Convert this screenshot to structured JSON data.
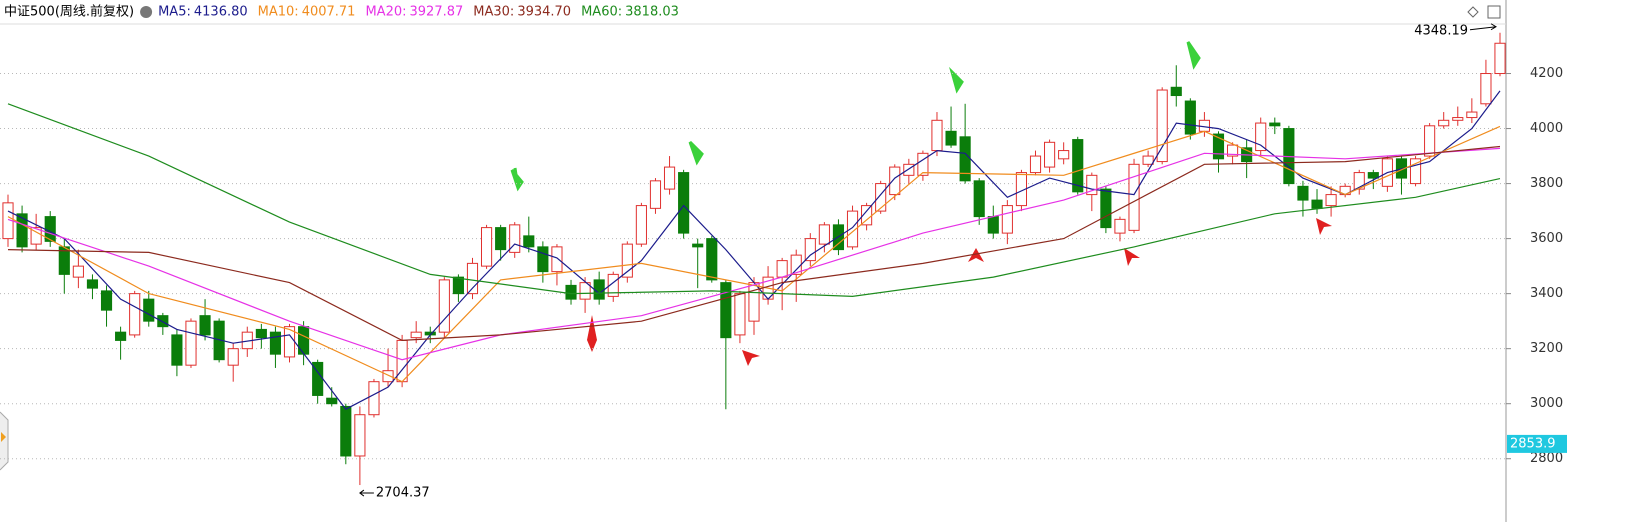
{
  "chart_data": {
    "type": "candlestick",
    "title": "中证500(周线.前复权)",
    "up_color": "#e0302e",
    "down_color": "#0b7d0b",
    "open": [
      3600,
      3690,
      3580,
      3680,
      3570,
      3460,
      3450,
      3410,
      3260,
      3250,
      3380,
      3320,
      3250,
      3140,
      3320,
      3300,
      3140,
      3200,
      3270,
      3260,
      3170,
      3280,
      3150,
      3020,
      2990,
      2810,
      2960,
      3080,
      3080,
      3240,
      3260,
      3260,
      3460,
      3400,
      3500,
      3640,
      3550,
      3610,
      3570,
      3480,
      3430,
      3380,
      3450,
      3390,
      3460,
      3580,
      3710,
      3780,
      3840,
      3580,
      3600,
      3440,
      3250,
      3300,
      3380,
      3460,
      3470,
      3520,
      3580,
      3650,
      3570,
      3650,
      3700,
      3760,
      3830,
      3830,
      3920,
      3990,
      3970,
      3810,
      3680,
      3620,
      3720,
      3840,
      3860,
      3890,
      3960,
      3760,
      3780,
      3620,
      3630,
      3870,
      3880,
      4150,
      4100,
      3990,
      3980,
      3900,
      3930,
      3920,
      4020,
      4000,
      3790,
      3740,
      3720,
      3760,
      3780,
      3840,
      3790,
      3890,
      3800,
      3900,
      4010,
      4030,
      4040,
      4090,
      4200
    ],
    "close": [
      3730,
      3570,
      3640,
      3590,
      3470,
      3500,
      3420,
      3340,
      3230,
      3400,
      3300,
      3280,
      3140,
      3300,
      3250,
      3160,
      3200,
      3260,
      3240,
      3180,
      3280,
      3180,
      3030,
      3000,
      2810,
      2960,
      3080,
      3120,
      3230,
      3260,
      3250,
      3450,
      3400,
      3510,
      3640,
      3560,
      3650,
      3570,
      3480,
      3570,
      3380,
      3440,
      3380,
      3470,
      3580,
      3720,
      3810,
      3860,
      3620,
      3570,
      3450,
      3240,
      3400,
      3440,
      3460,
      3520,
      3540,
      3600,
      3650,
      3560,
      3700,
      3720,
      3800,
      3860,
      3870,
      3910,
      4030,
      3940,
      3810,
      3680,
      3620,
      3720,
      3840,
      3900,
      3950,
      3920,
      3770,
      3830,
      3640,
      3670,
      3870,
      3900,
      4140,
      4120,
      3980,
      4030,
      3890,
      3940,
      3880,
      4020,
      4010,
      3800,
      3740,
      3710,
      3760,
      3790,
      3840,
      3820,
      3890,
      3820,
      3890,
      4010,
      4030,
      4040,
      4060,
      4200,
      4310
    ],
    "high": [
      3760,
      3720,
      3690,
      3700,
      3600,
      3560,
      3470,
      3430,
      3280,
      3410,
      3410,
      3330,
      3270,
      3310,
      3380,
      3310,
      3220,
      3280,
      3290,
      3280,
      3290,
      3300,
      3160,
      3060,
      3000,
      2990,
      3090,
      3200,
      3250,
      3300,
      3280,
      3460,
      3470,
      3530,
      3650,
      3650,
      3660,
      3680,
      3590,
      3580,
      3450,
      3460,
      3480,
      3480,
      3590,
      3730,
      3820,
      3900,
      3850,
      3600,
      3610,
      3450,
      3410,
      3460,
      3500,
      3530,
      3560,
      3620,
      3660,
      3670,
      3720,
      3730,
      3810,
      3870,
      3890,
      3920,
      4060,
      4080,
      4090,
      3820,
      3720,
      3740,
      3850,
      3920,
      3960,
      3950,
      3970,
      3840,
      3790,
      3680,
      3890,
      3920,
      4150,
      4230,
      4110,
      4060,
      3990,
      3950,
      3960,
      4040,
      4040,
      4010,
      3810,
      3780,
      3790,
      3800,
      3850,
      3850,
      3900,
      3900,
      3900,
      4020,
      4060,
      4080,
      4110,
      4250,
      4348.19
    ],
    "low": [
      3570,
      3550,
      3560,
      3570,
      3400,
      3420,
      3380,
      3280,
      3160,
      3240,
      3280,
      3250,
      3100,
      3130,
      3230,
      3150,
      3080,
      3170,
      3200,
      3130,
      3150,
      3140,
      3000,
      2990,
      2780,
      2704.37,
      2950,
      3060,
      3060,
      3220,
      3220,
      3240,
      3370,
      3380,
      3490,
      3520,
      3530,
      3550,
      3440,
      3430,
      3360,
      3330,
      3360,
      3370,
      3440,
      3570,
      3690,
      3760,
      3600,
      3420,
      3440,
      2980,
      3220,
      3250,
      3360,
      3340,
      3370,
      3500,
      3550,
      3540,
      3560,
      3630,
      3690,
      3740,
      3800,
      3810,
      3900,
      3930,
      3800,
      3650,
      3600,
      3580,
      3700,
      3830,
      3840,
      3870,
      3760,
      3700,
      3620,
      3590,
      3620,
      3860,
      3870,
      4080,
      3960,
      3970,
      3840,
      3870,
      3820,
      3900,
      3980,
      3790,
      3680,
      3690,
      3680,
      3750,
      3760,
      3780,
      3770,
      3760,
      3790,
      3890,
      4000,
      4010,
      4020,
      4080,
      4190
    ],
    "series": [
      {
        "name": "MA5",
        "color": "#1c1c8c",
        "value_label": "4136.80",
        "x": [
          0,
          4,
          8,
          12,
          16,
          20,
          24,
          27,
          30,
          33,
          36,
          39,
          42,
          45,
          48,
          51,
          54,
          57,
          60,
          63,
          66,
          68,
          71,
          74,
          77,
          80,
          83,
          86,
          89,
          92,
          95,
          98,
          101,
          104,
          106
        ],
        "values": [
          3700,
          3600,
          3380,
          3270,
          3220,
          3250,
          2980,
          3060,
          3250,
          3420,
          3580,
          3530,
          3400,
          3520,
          3720,
          3560,
          3380,
          3540,
          3640,
          3820,
          3920,
          3910,
          3750,
          3820,
          3780,
          3760,
          4020,
          4000,
          3940,
          3820,
          3760,
          3840,
          3880,
          4000,
          4136.8
        ]
      },
      {
        "name": "MA10",
        "color": "#f08c1e",
        "value_label": "4007.71",
        "x": [
          0,
          10,
          20,
          28,
          35,
          45,
          55,
          65,
          75,
          85,
          95,
          106
        ],
        "values": [
          3680,
          3400,
          3270,
          3080,
          3450,
          3510,
          3410,
          3840,
          3830,
          3990,
          3760,
          4007.71
        ]
      },
      {
        "name": "MA20",
        "color": "#e632e6",
        "value_label": "3927.87",
        "x": [
          0,
          10,
          20,
          28,
          35,
          45,
          55,
          65,
          75,
          85,
          95,
          106
        ],
        "values": [
          3670,
          3500,
          3300,
          3160,
          3250,
          3320,
          3460,
          3620,
          3740,
          3910,
          3890,
          3927.87
        ]
      },
      {
        "name": "MA30",
        "color": "#8c2a1e",
        "value_label": "3934.70",
        "x": [
          0,
          10,
          20,
          28,
          35,
          45,
          55,
          65,
          75,
          85,
          95,
          106
        ],
        "values": [
          3560,
          3550,
          3440,
          3230,
          3250,
          3300,
          3440,
          3510,
          3600,
          3870,
          3880,
          3934.7
        ]
      },
      {
        "name": "MA60",
        "color": "#1e8c1e",
        "value_label": "3818.03",
        "x": [
          0,
          10,
          20,
          30,
          40,
          50,
          60,
          70,
          80,
          90,
          100,
          106
        ],
        "values": [
          4090,
          3900,
          3660,
          3470,
          3400,
          3410,
          3390,
          3460,
          3570,
          3690,
          3750,
          3818.03
        ]
      }
    ],
    "ylim": [
      2650,
      4380
    ],
    "yticks": [
      2800,
      3000,
      3200,
      3400,
      3600,
      3800,
      4000,
      4200
    ],
    "grid": true,
    "current_price": 2853.9
  }
}
